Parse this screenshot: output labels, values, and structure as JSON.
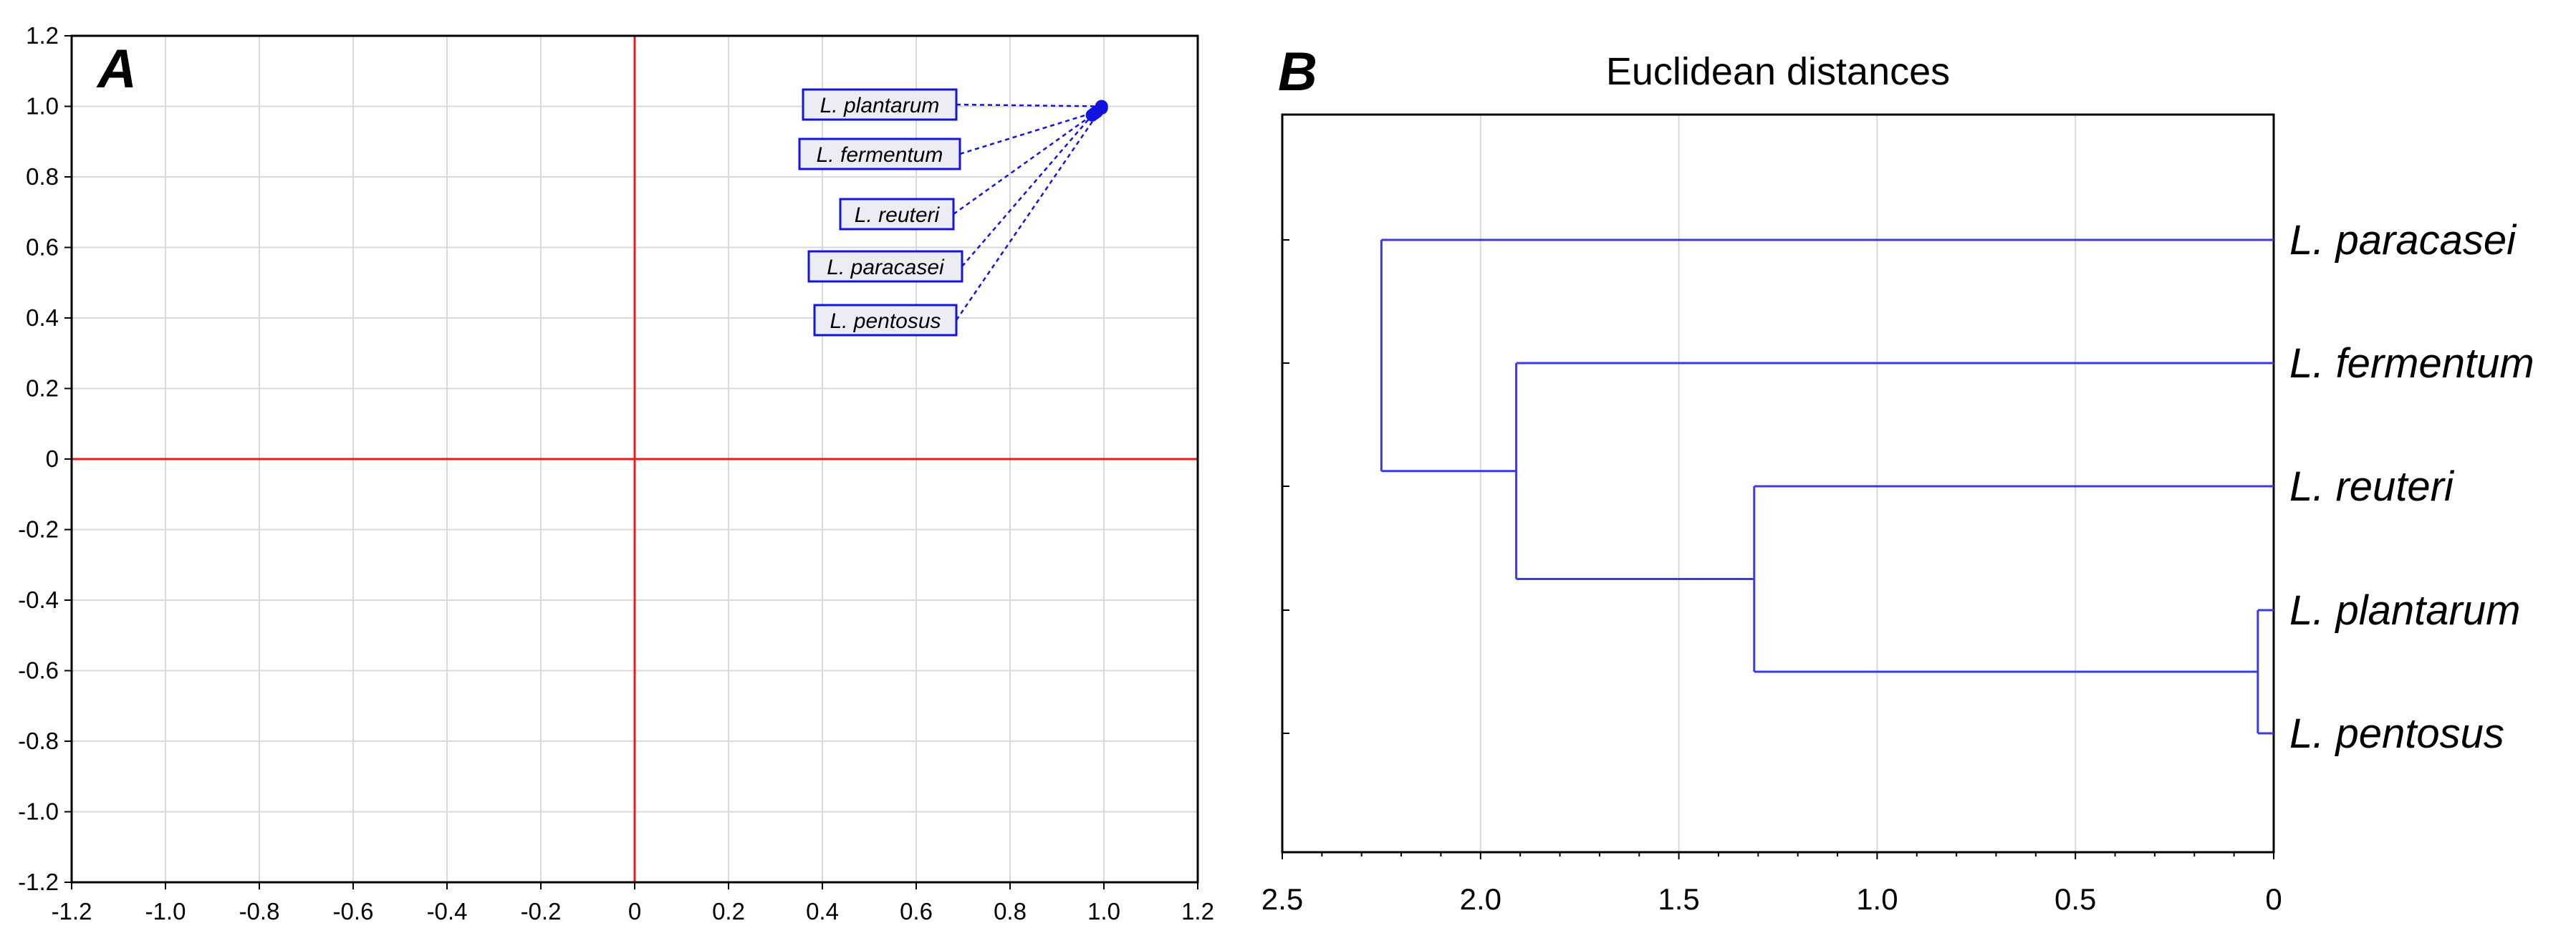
{
  "chart_data": [
    {
      "type": "scatter",
      "panel_label": "A",
      "title": "",
      "xlabel": "",
      "ylabel": "",
      "xlim": [
        -1.2,
        1.2
      ],
      "ylim": [
        -1.2,
        1.2
      ],
      "x_ticks": [
        "-1.2",
        "-1.0",
        "-0.8",
        "-0.6",
        "-0.4",
        "-0.2",
        "0",
        "0.2",
        "0.4",
        "0.6",
        "0.8",
        "1.0",
        "1.2"
      ],
      "y_ticks": [
        "1.2",
        "1.0",
        "0.8",
        "0.6",
        "0.4",
        "0.2",
        "0",
        "-0.2",
        "-0.4",
        "-0.6",
        "-0.8",
        "-1.0",
        "-1.2"
      ],
      "grid": true,
      "reference_lines": {
        "x": 0,
        "y": 0,
        "color": "#e8191f"
      },
      "point_color": "#1414e0",
      "points": [
        {
          "label": "L. plantarum",
          "x": 0.995,
          "y": 1.0
        },
        {
          "label": "L. fermentum",
          "x": 0.985,
          "y": 0.985
        },
        {
          "label": "L. reuteri",
          "x": 0.98,
          "y": 0.98
        },
        {
          "label": "L. paracasei",
          "x": 0.975,
          "y": 0.975
        },
        {
          "label": "L. pentosus",
          "x": 0.995,
          "y": 0.995
        }
      ]
    },
    {
      "type": "dendrogram",
      "panel_label": "B",
      "title": "Euclidean distances",
      "xlim": [
        2.5,
        0
      ],
      "x_ticks": [
        "2.5",
        "2.0",
        "1.5",
        "1.0",
        "0.5",
        "0"
      ],
      "grid": true,
      "line_color": "#3a3ae6",
      "leaves": [
        "L. paracasei",
        "L. fermentum",
        "L. reuteri",
        "L. plantarum",
        "L. pentosus"
      ],
      "merges": [
        {
          "left": 3,
          "right": 4,
          "height": 0.04
        },
        {
          "left": 2,
          "right": 5,
          "height": 1.31
        },
        {
          "left": 1,
          "right": 6,
          "height": 1.91
        },
        {
          "left": 0,
          "right": 7,
          "height": 2.25
        }
      ]
    }
  ]
}
